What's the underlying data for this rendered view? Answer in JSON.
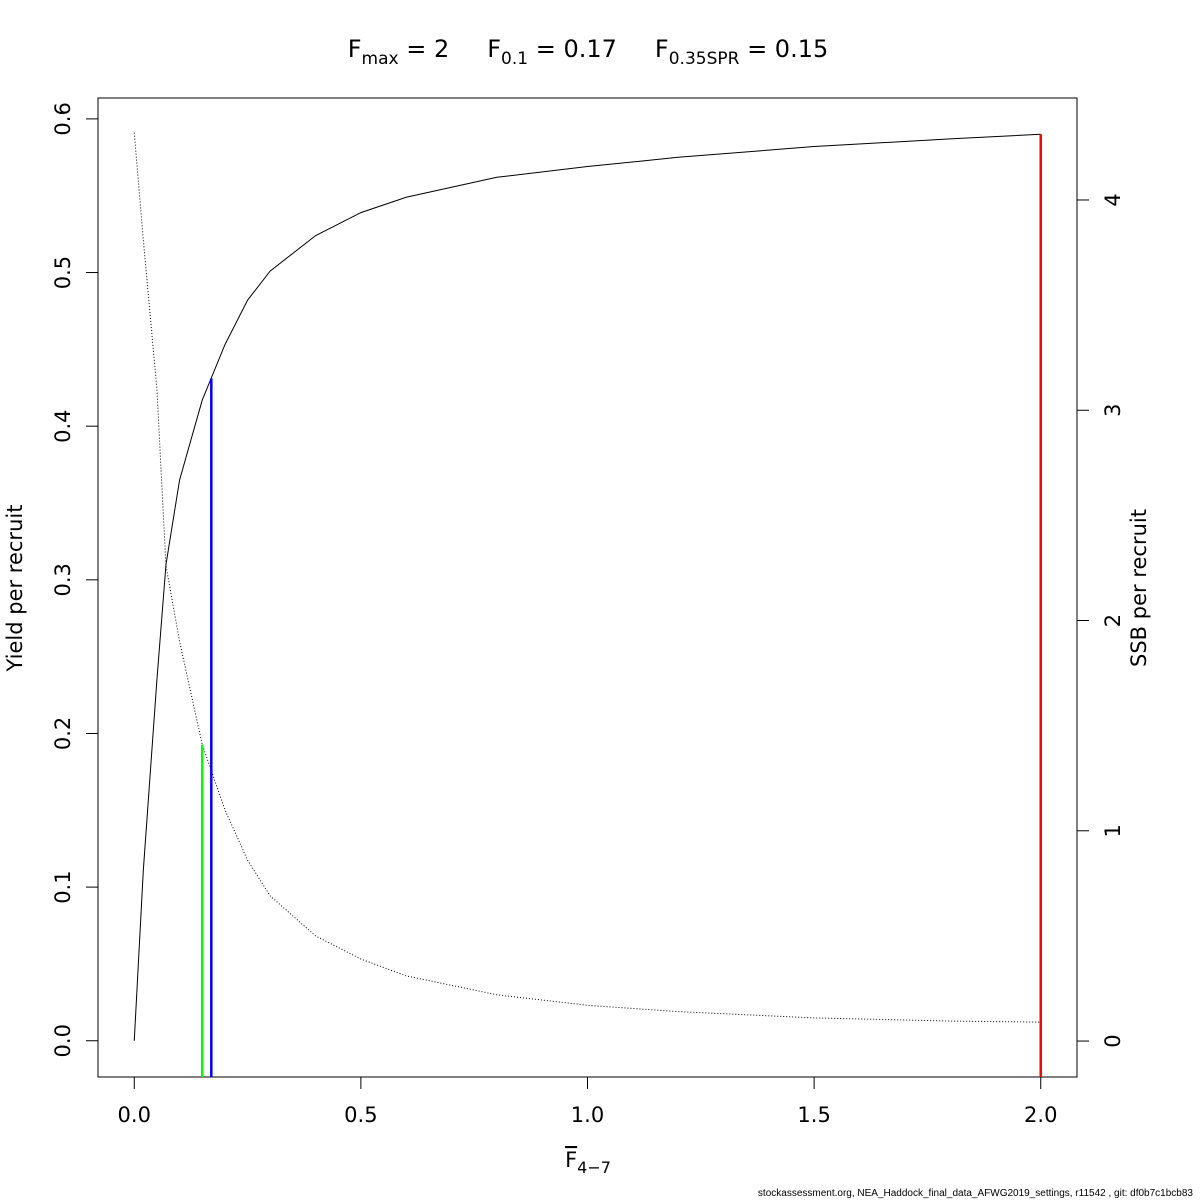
{
  "chart_data": {
    "type": "line",
    "title_parts": [
      {
        "main": "F",
        "sub": "max",
        "rest": " = 2"
      },
      {
        "main": "F",
        "sub": "0.1",
        "rest": " = 0.17"
      },
      {
        "main": "F",
        "sub": "0.35SPR",
        "rest": " = 0.15"
      }
    ],
    "xlabel": {
      "main": "F",
      "sub": "4−7"
    },
    "ylabel": "Yield per recruit",
    "y2label": "SSB per recruit",
    "footer": "stockassessment.org, NEA_Haddock_final_data_AFWG2019_settings, r11542 , git: df0b7c1bcb83",
    "x": [
      0,
      0.02,
      0.05,
      0.07,
      0.1,
      0.15,
      0.2,
      0.25,
      0.3,
      0.4,
      0.5,
      0.6,
      0.8,
      1.0,
      1.2,
      1.5,
      1.8,
      2.0
    ],
    "series": [
      {
        "color": "#000000",
        "line_style": "solid",
        "axis": "y",
        "values": [
          0,
          0.111,
          0.235,
          0.31,
          0.365,
          0.417,
          0.453,
          0.482,
          0.501,
          0.524,
          0.539,
          0.549,
          0.562,
          0.569,
          0.575,
          0.582,
          0.587,
          0.59
        ]
      },
      {
        "color": "#000000",
        "line_style": "dotted",
        "axis": "y2",
        "values": [
          4.32,
          3.81,
          3.1,
          2.26,
          1.9,
          1.41,
          1.1,
          0.86,
          0.69,
          0.5,
          0.39,
          0.31,
          0.22,
          0.17,
          0.14,
          0.11,
          0.095,
          0.09
        ]
      }
    ],
    "vlines": [
      {
        "x": 2,
        "y": 0.59,
        "axis": "y",
        "color": "#ff0000"
      },
      {
        "x": 0.17,
        "y": 0.431,
        "axis": "y",
        "color": "#0000ff"
      },
      {
        "x": 0.15,
        "y": 1.41,
        "axis": "y2",
        "color": "#00ff00"
      }
    ],
    "xlim": [
      -0.08,
      2.08
    ],
    "xticks": [
      {
        "value": 0,
        "label": "0.0"
      },
      0.5,
      {
        "value": 1,
        "label": "1.0"
      },
      1.5,
      {
        "value": 2,
        "label": "2.0"
      }
    ],
    "ylim": [
      -0.0236,
      0.6136
    ],
    "yticks": [
      {
        "value": 0,
        "label": "0.0"
      },
      0.1,
      0.2,
      0.3,
      0.4,
      0.5,
      0.6
    ],
    "y2lim": [
      -0.171,
      4.485
    ],
    "y2ticks": [
      0,
      1,
      2,
      3,
      4
    ]
  }
}
